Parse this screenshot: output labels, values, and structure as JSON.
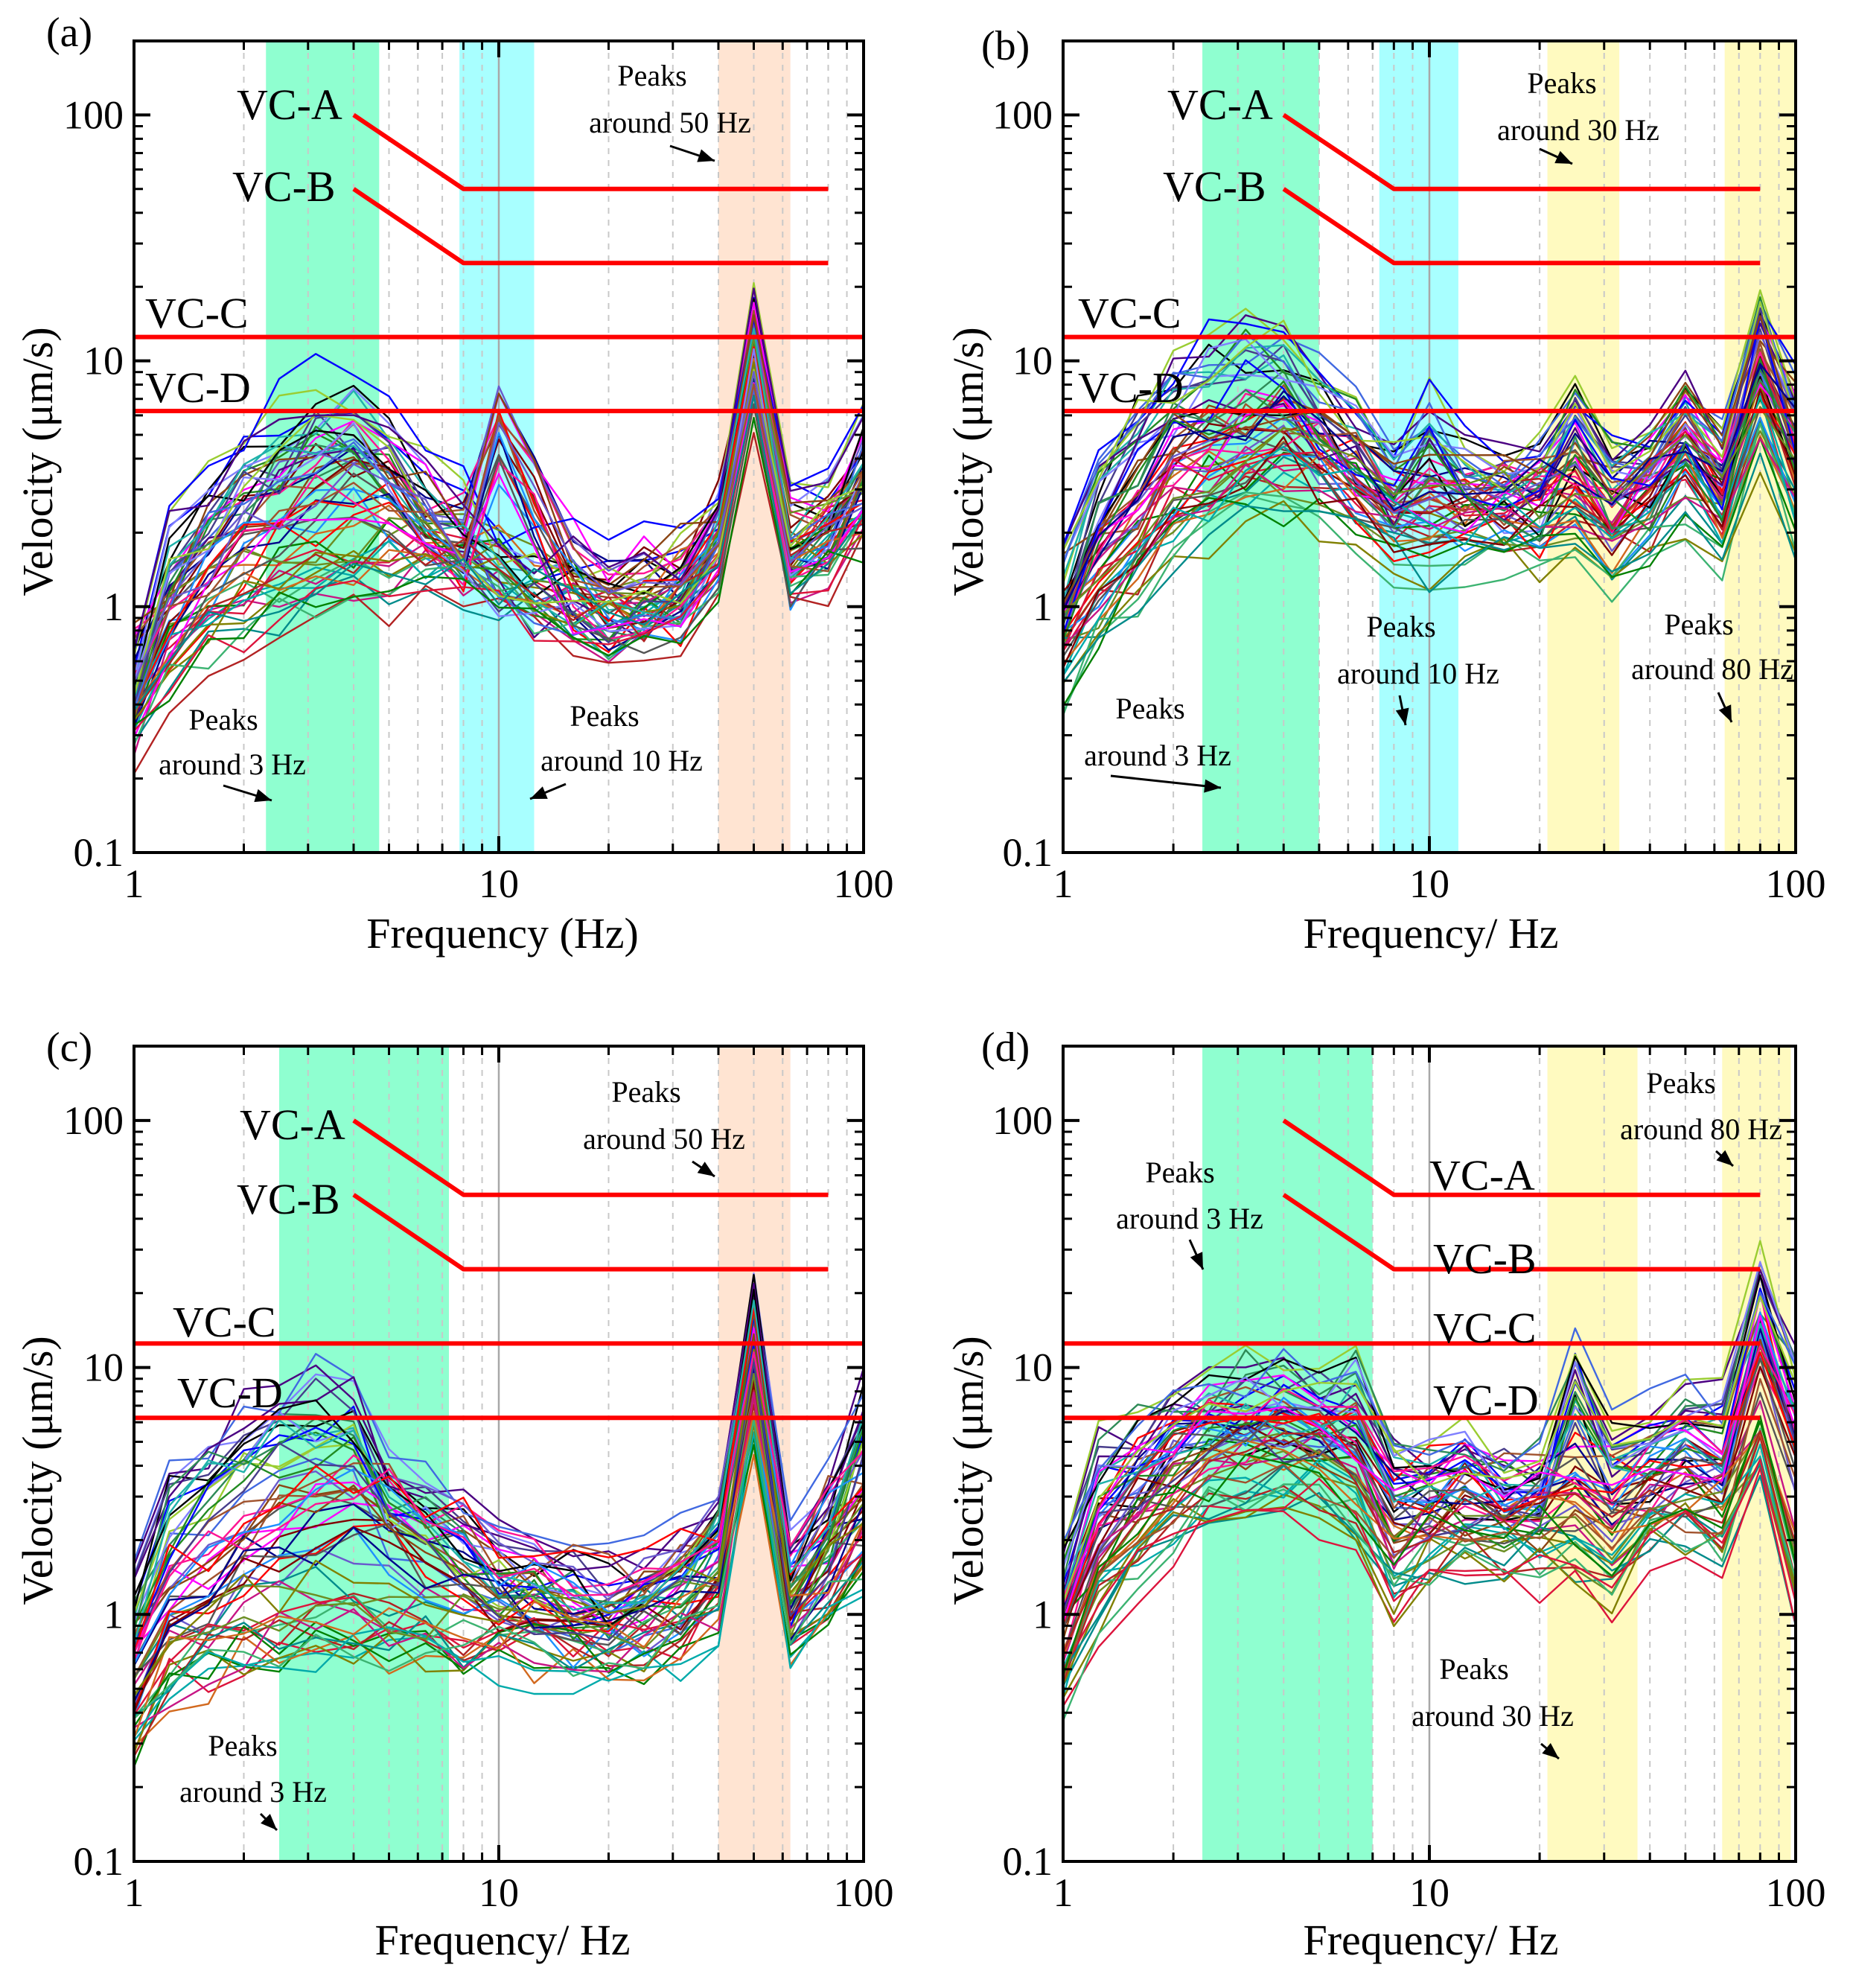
{
  "figure": {
    "y_axis_label": "Velocity (μm/s)",
    "y_ticks": [
      "0.1",
      "1",
      "10",
      "100"
    ],
    "x_ticks": [
      "1",
      "10",
      "100"
    ]
  },
  "chart_data": [
    {
      "type": "line",
      "panel": "(a)",
      "xlabel": "Frequency (Hz)",
      "ylabel": "Velocity (μm/s)",
      "xscale": "log",
      "yscale": "log",
      "xlim": [
        1,
        100
      ],
      "ylim": [
        0.1,
        200
      ],
      "shaded_bands": [
        {
          "from": 2.3,
          "to": 4.7,
          "color": "#8fffd0"
        },
        {
          "from": 7.8,
          "to": 12.5,
          "color": "#a8ffff"
        },
        {
          "from": 40,
          "to": 63,
          "color": "#ffe4d2"
        }
      ],
      "criteria": [
        {
          "name": "VC-A",
          "label": "VC-A",
          "points": [
            [
              4,
              100
            ],
            [
              8,
              50
            ],
            [
              80,
              50
            ]
          ]
        },
        {
          "name": "VC-B",
          "label": "VC-B",
          "points": [
            [
              4,
              50
            ],
            [
              8,
              25
            ],
            [
              80,
              25
            ]
          ]
        },
        {
          "name": "VC-C",
          "label": "VC-C",
          "points": [
            [
              1,
              12.5
            ],
            [
              100,
              12.5
            ]
          ]
        },
        {
          "name": "VC-D",
          "label": "VC-D",
          "points": [
            [
              1,
              6.25
            ],
            [
              100,
              6.25
            ]
          ]
        }
      ],
      "annotations": [
        {
          "line1": "Peaks",
          "line2": "around 50 Hz"
        },
        {
          "line1": "Peaks",
          "line2": "around 3 Hz"
        },
        {
          "line1": "Peaks",
          "line2": "around 10 Hz"
        }
      ],
      "series_summary": {
        "count": 60,
        "x": [
          1,
          1.25,
          1.6,
          2,
          2.5,
          3.15,
          4,
          5,
          6.3,
          8,
          10,
          12.5,
          16,
          20,
          25,
          31.5,
          40,
          50,
          63,
          80,
          100
        ],
        "profiles": [
          {
            "name": "high",
            "values": [
              0.55,
              1.6,
              2.6,
              3.6,
              4.7,
              5.8,
              6.2,
              4.6,
              3.0,
              2.3,
              1.5,
              1.35,
              1.25,
              1.15,
              1.2,
              1.3,
              2.2,
              13,
              2.2,
              2.5,
              4.5
            ]
          },
          {
            "name": "mid",
            "values": [
              0.5,
              0.95,
              1.5,
              2.1,
              2.6,
              3.2,
              3.4,
              3.0,
              2.3,
              1.8,
              5.5,
              3.0,
              1.3,
              1.05,
              1.1,
              1.2,
              2.0,
              11,
              1.7,
              2.0,
              3.2
            ]
          },
          {
            "name": "low",
            "values": [
              0.35,
              0.65,
              0.85,
              1.0,
              1.15,
              1.3,
              1.4,
              1.5,
              1.5,
              1.4,
              1.25,
              1.1,
              1.0,
              0.85,
              0.85,
              1.0,
              1.6,
              9,
              1.4,
              1.7,
              2.3
            ]
          }
        ]
      }
    },
    {
      "type": "line",
      "panel": "(b)",
      "xlabel": "Frequency/ Hz",
      "ylabel": "Velocity (μm/s)",
      "xscale": "log",
      "yscale": "log",
      "xlim": [
        1,
        100
      ],
      "ylim": [
        0.1,
        200
      ],
      "shaded_bands": [
        {
          "from": 2.4,
          "to": 5.0,
          "color": "#8fffd0"
        },
        {
          "from": 7.3,
          "to": 12.0,
          "color": "#a8ffff"
        },
        {
          "from": 21,
          "to": 33,
          "color": "#fffac0"
        },
        {
          "from": 64,
          "to": 100,
          "color": "#fffac0"
        }
      ],
      "criteria": [
        {
          "name": "VC-A",
          "label": "VC-A",
          "points": [
            [
              4,
              100
            ],
            [
              8,
              50
            ],
            [
              80,
              50
            ]
          ]
        },
        {
          "name": "VC-B",
          "label": "VC-B",
          "points": [
            [
              4,
              50
            ],
            [
              8,
              25
            ],
            [
              80,
              25
            ]
          ]
        },
        {
          "name": "VC-C",
          "label": "VC-C",
          "points": [
            [
              1,
              12.5
            ],
            [
              100,
              12.5
            ]
          ]
        },
        {
          "name": "VC-D",
          "label": "VC-D",
          "points": [
            [
              1,
              6.25
            ],
            [
              100,
              6.25
            ]
          ]
        }
      ],
      "annotations": [
        {
          "line1": "Peaks",
          "line2": "around 30 Hz"
        },
        {
          "line1": "Peaks",
          "line2": "around 10 Hz"
        },
        {
          "line1": "Peaks",
          "line2": "around 80 Hz"
        },
        {
          "line1": "Peaks",
          "line2": "around 3 Hz"
        }
      ],
      "series_summary": {
        "count": 60,
        "x": [
          1,
          1.25,
          1.6,
          2,
          2.5,
          3.15,
          4,
          5,
          6.3,
          8,
          10,
          12.5,
          16,
          20,
          25,
          31.5,
          40,
          50,
          63,
          80,
          100
        ],
        "profiles": [
          {
            "name": "high",
            "values": [
              1.1,
              2.8,
              4.8,
              6.5,
              8.2,
              9.3,
              9.6,
              6.5,
              4.8,
              3.2,
              5.0,
              3.4,
              3.0,
              3.1,
              5.5,
              3.2,
              3.6,
              5.5,
              3.5,
              14,
              5.5
            ]
          },
          {
            "name": "mid",
            "values": [
              0.9,
              1.6,
              2.4,
              3.5,
              4.4,
              5.0,
              5.2,
              4.4,
              3.4,
              2.5,
              2.8,
              2.5,
              2.6,
              2.7,
              3.5,
              2.3,
              3.0,
              4.6,
              3.0,
              9.5,
              4.5
            ]
          },
          {
            "name": "low",
            "values": [
              0.6,
              1.0,
              1.5,
              2.2,
              2.7,
              3.1,
              3.3,
              3.2,
              2.7,
              2.0,
              1.8,
              2.0,
              2.1,
              2.1,
              2.3,
              1.7,
              2.2,
              3.2,
              2.2,
              6.0,
              2.5
            ]
          }
        ]
      }
    },
    {
      "type": "line",
      "panel": "(c)",
      "xlabel": "Frequency/ Hz",
      "ylabel": "Velocity (μm/s)",
      "xscale": "log",
      "yscale": "log",
      "xlim": [
        1,
        100
      ],
      "ylim": [
        0.1,
        200
      ],
      "shaded_bands": [
        {
          "from": 2.5,
          "to": 7.3,
          "color": "#8fffd0"
        },
        {
          "from": 40,
          "to": 63,
          "color": "#ffe4d2"
        }
      ],
      "criteria": [
        {
          "name": "VC-A",
          "label": "VC-A",
          "points": [
            [
              4,
              100
            ],
            [
              8,
              50
            ],
            [
              80,
              50
            ]
          ]
        },
        {
          "name": "VC-B",
          "label": "VC-B",
          "points": [
            [
              4,
              50
            ],
            [
              8,
              25
            ],
            [
              80,
              25
            ]
          ]
        },
        {
          "name": "VC-C",
          "label": "VC-C",
          "points": [
            [
              1,
              12.5
            ],
            [
              100,
              12.5
            ]
          ]
        },
        {
          "name": "VC-D",
          "label": "VC-D",
          "points": [
            [
              1,
              6.25
            ],
            [
              100,
              6.25
            ]
          ]
        }
      ],
      "annotations": [
        {
          "line1": "Peaks",
          "line2": "around 50 Hz"
        },
        {
          "line1": "Peaks",
          "line2": "around 3 Hz"
        }
      ],
      "series_summary": {
        "count": 60,
        "x": [
          1,
          1.25,
          1.6,
          2,
          2.5,
          3.15,
          4,
          5,
          6.3,
          8,
          10,
          12.5,
          16,
          20,
          25,
          31.5,
          40,
          50,
          63,
          80,
          100
        ],
        "profiles": [
          {
            "name": "high",
            "values": [
              1.0,
              2.7,
              3.8,
              5.0,
              5.8,
              6.3,
              5.8,
              3.0,
              2.6,
              2.0,
              1.6,
              1.5,
              1.3,
              1.2,
              1.3,
              1.6,
              2.4,
              17,
              1.4,
              2.6,
              6.0
            ]
          },
          {
            "name": "mid",
            "values": [
              0.6,
              1.1,
              1.4,
              1.8,
              2.1,
              2.5,
              2.6,
              2.4,
              1.9,
              1.7,
              1.3,
              1.2,
              1.1,
              1.0,
              1.1,
              1.3,
              1.7,
              11,
              1.2,
              2.0,
              3.0
            ]
          },
          {
            "name": "low",
            "values": [
              0.35,
              0.6,
              0.72,
              0.82,
              0.9,
              0.95,
              0.95,
              0.9,
              0.88,
              0.85,
              0.85,
              0.85,
              0.8,
              0.75,
              0.8,
              0.9,
              1.2,
              7,
              0.9,
              1.3,
              2.0
            ]
          }
        ]
      }
    },
    {
      "type": "line",
      "panel": "(d)",
      "xlabel": "Frequency/ Hz",
      "ylabel": "Velocity (μm/s)",
      "xscale": "log",
      "yscale": "log",
      "xlim": [
        1,
        100
      ],
      "ylim": [
        0.1,
        200
      ],
      "shaded_bands": [
        {
          "from": 2.4,
          "to": 7.0,
          "color": "#8fffd0"
        },
        {
          "from": 21,
          "to": 37,
          "color": "#fffac0"
        },
        {
          "from": 63,
          "to": 97,
          "color": "#fffac0"
        }
      ],
      "criteria": [
        {
          "name": "VC-A",
          "label": "VC-A",
          "points": [
            [
              4,
              100
            ],
            [
              8,
              50
            ],
            [
              80,
              50
            ]
          ]
        },
        {
          "name": "VC-B",
          "label": "VC-B",
          "points": [
            [
              4,
              50
            ],
            [
              8,
              25
            ],
            [
              80,
              25
            ]
          ]
        },
        {
          "name": "VC-C",
          "label": "VC-C",
          "points": [
            [
              1,
              12.5
            ],
            [
              80,
              12.5
            ]
          ]
        },
        {
          "name": "VC-D",
          "label": "VC-D",
          "points": [
            [
              1,
              6.25
            ],
            [
              80,
              6.25
            ]
          ]
        }
      ],
      "annotations": [
        {
          "line1": "Peaks",
          "line2": "around 80 Hz"
        },
        {
          "line1": "Peaks",
          "line2": "around 3 Hz"
        },
        {
          "line1": "Peaks",
          "line2": "around 30 Hz"
        }
      ],
      "series_summary": {
        "count": 60,
        "x": [
          1,
          1.25,
          1.6,
          2,
          2.5,
          3.15,
          4,
          5,
          6.3,
          8,
          10,
          12.5,
          16,
          20,
          25,
          31.5,
          40,
          50,
          63,
          80,
          100
        ],
        "profiles": [
          {
            "name": "high",
            "values": [
              1.3,
              3.5,
              4.5,
              5.5,
              6.5,
              7.2,
              7.5,
              6.5,
              7.8,
              3.6,
              3.8,
              4.0,
              3.3,
              3.3,
              9,
              4.5,
              5.0,
              6.0,
              5.5,
              19,
              8
            ]
          },
          {
            "name": "mid",
            "values": [
              0.9,
              2.2,
              3.2,
              4.0,
              4.8,
              5.4,
              5.8,
              5.2,
              4.2,
              2.4,
              2.8,
              2.9,
              2.6,
              2.6,
              3.2,
              2.8,
              3.3,
              3.8,
              3.5,
              12,
              4.5
            ]
          },
          {
            "name": "low",
            "values": [
              0.6,
              1.3,
              2.0,
              2.7,
              3.2,
              3.5,
              3.8,
              3.6,
              2.8,
              1.4,
              1.9,
              2.0,
              2.0,
              2.0,
              2.0,
              1.6,
              2.3,
              2.6,
              2.3,
              5.0,
              1.5
            ]
          }
        ]
      }
    }
  ]
}
